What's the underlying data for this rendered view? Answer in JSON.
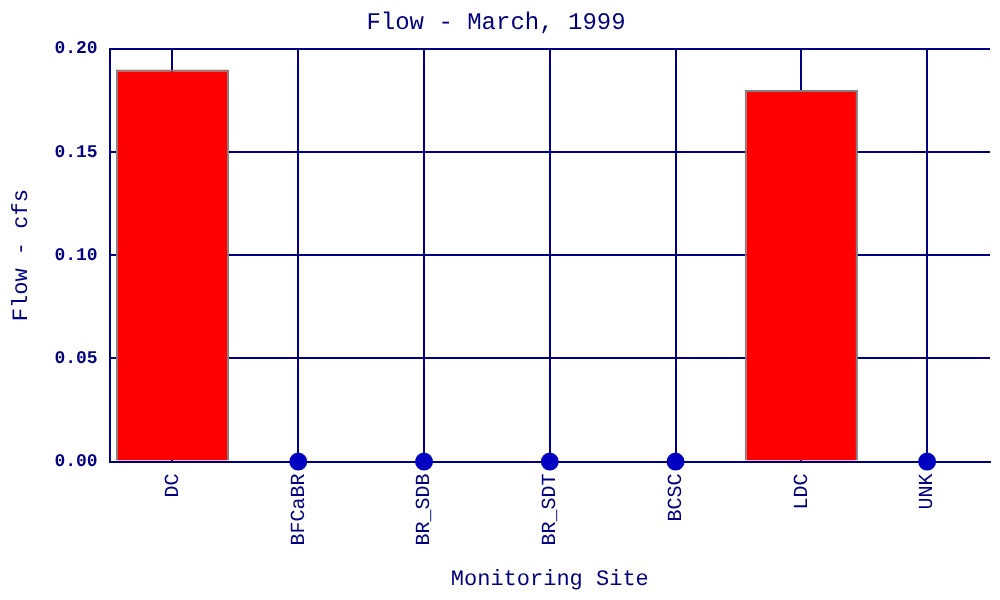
{
  "chart_data": {
    "type": "bar",
    "title": "Flow - March, 1999",
    "xlabel": "Monitoring Site",
    "ylabel": "Flow - cfs",
    "categories": [
      "DC",
      "BFCaBR",
      "BR_SDB",
      "BR_SDT",
      "BCSC",
      "LDC",
      "UNK"
    ],
    "series": [
      {
        "color": "#ff0000",
        "values": [
          0.19,
          0,
          0,
          0,
          0,
          0.18,
          0
        ]
      },
      {
        "type": "scatter",
        "color": "#0000c0",
        "x": [
          "BFCaBR",
          "BR_SDB",
          "BR_SDT",
          "BCSC",
          "UNK"
        ],
        "values": [
          0,
          0,
          0,
          0,
          0
        ]
      }
    ],
    "ylim": [
      0,
      0.2
    ],
    "yticks": [
      {
        "value": 0,
        "label": "0.00"
      },
      {
        "value": 0.05,
        "label": "0.05"
      },
      {
        "value": 0.1,
        "label": "0.10"
      },
      {
        "value": 0.15,
        "label": "0.15"
      },
      {
        "value": 0.2,
        "label": "0.20"
      }
    ],
    "grid": true,
    "marker": "circle"
  }
}
